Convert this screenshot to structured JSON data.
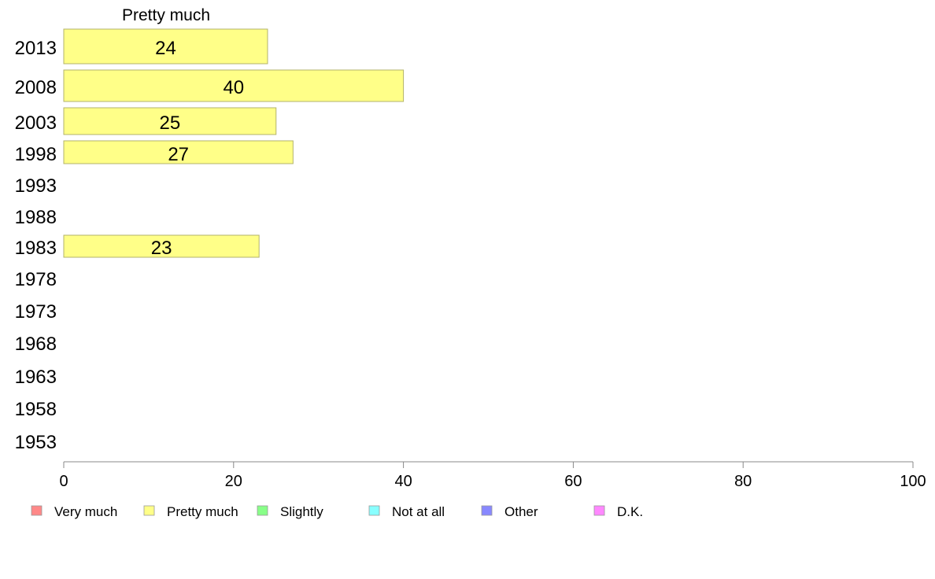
{
  "chart_data": {
    "type": "bar",
    "orientation": "horizontal",
    "title": "Pretty much",
    "categories": [
      "2013",
      "2008",
      "2003",
      "1998",
      "1993",
      "1988",
      "1983",
      "1978",
      "1973",
      "1968",
      "1963",
      "1958",
      "1953"
    ],
    "series": [
      {
        "name": "Pretty much",
        "color": "#ffff88",
        "values": [
          24,
          40,
          25,
          27,
          null,
          null,
          23,
          null,
          null,
          null,
          null,
          null,
          null
        ],
        "labels": [
          "24",
          "40",
          "25",
          "27",
          "",
          "",
          "23",
          "",
          "",
          "",
          "",
          "",
          ""
        ]
      }
    ],
    "xlim": [
      0,
      100
    ],
    "xticks": [
      "0",
      "20",
      "40",
      "60",
      "80",
      "100"
    ],
    "legend_position": "bottom",
    "legend": [
      {
        "label": "Very much",
        "color": "#ff8888"
      },
      {
        "label": "Pretty much",
        "color": "#ffff88"
      },
      {
        "label": "Slightly",
        "color": "#88ff88"
      },
      {
        "label": "Not at all",
        "color": "#88ffff"
      },
      {
        "label": "Other",
        "color": "#8888ff"
      },
      {
        "label": "D.K.",
        "color": "#ff88ff"
      }
    ]
  }
}
